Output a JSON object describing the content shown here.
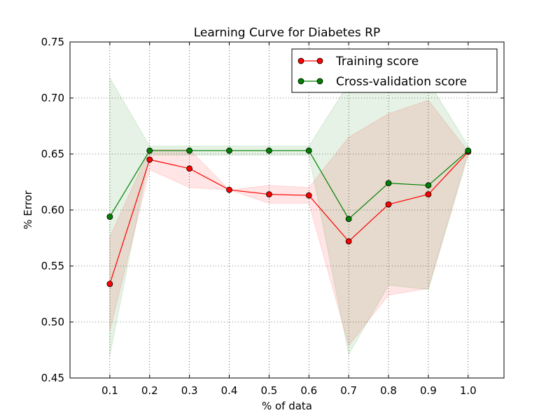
{
  "chart_data": {
    "type": "line",
    "title": "Learning Curve for Diabetes RP",
    "xlabel": "% of data",
    "ylabel": "% Error",
    "xlim": [
      0.0,
      1.09
    ],
    "ylim": [
      0.45,
      0.75
    ],
    "xticks": [
      "0.1",
      "0.2",
      "0.3",
      "0.4",
      "0.5",
      "0.6",
      "0.7",
      "0.8",
      "0.9",
      "1.0"
    ],
    "yticks": [
      "0.45",
      "0.50",
      "0.55",
      "0.60",
      "0.65",
      "0.70",
      "0.75"
    ],
    "grid": true,
    "legend_position": "top-right",
    "x": [
      0.1,
      0.2,
      0.3,
      0.4,
      0.5,
      0.6,
      0.7,
      0.8,
      0.9,
      1.0
    ],
    "series": [
      {
        "name": "Training score",
        "color": "#ff0000",
        "values": [
          0.534,
          0.645,
          0.637,
          0.618,
          0.614,
          0.613,
          0.572,
          0.605,
          0.614,
          0.652
        ],
        "band_upper": [
          0.576,
          0.654,
          0.654,
          0.618,
          0.622,
          0.62,
          0.665,
          0.686,
          0.698,
          0.652
        ],
        "band_lower": [
          0.492,
          0.636,
          0.62,
          0.618,
          0.606,
          0.606,
          0.479,
          0.524,
          0.53,
          0.652
        ]
      },
      {
        "name": "Cross-validation score",
        "color": "#008000",
        "values": [
          0.594,
          0.653,
          0.653,
          0.653,
          0.653,
          0.653,
          0.592,
          0.624,
          0.622,
          0.653
        ],
        "band_upper": [
          0.718,
          0.657,
          0.657,
          0.657,
          0.657,
          0.657,
          0.713,
          0.715,
          0.715,
          0.657
        ],
        "band_lower": [
          0.47,
          0.649,
          0.649,
          0.649,
          0.649,
          0.649,
          0.471,
          0.533,
          0.529,
          0.649
        ]
      }
    ]
  }
}
